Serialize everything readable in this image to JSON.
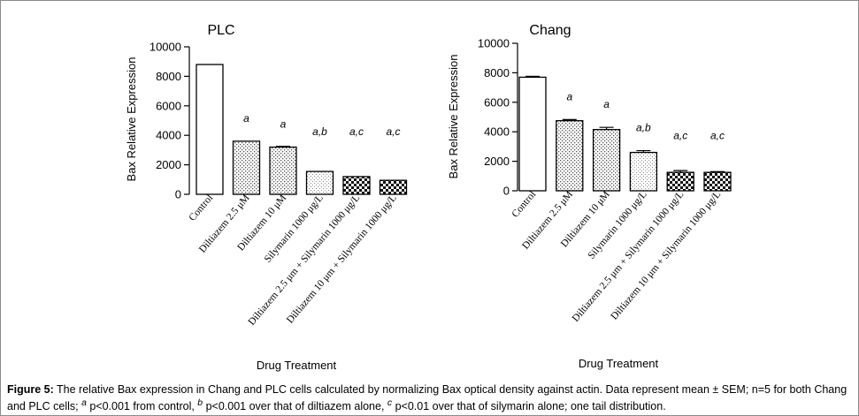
{
  "chart_data": [
    {
      "type": "bar",
      "title": "PLC",
      "xlabel": "Drug Treatment",
      "ylabel": "Bax Relative Expression",
      "ylim": [
        0,
        10000
      ],
      "yticks": [
        "0",
        "2000",
        "4000",
        "6000",
        "8000",
        "10000"
      ],
      "categories": [
        "Control",
        "Diltiazem 2.5 μM",
        "Diltiazem 10 μM",
        "Silymarin 1000 μg/L",
        "Diltiazem 2.5 μm + Silymarin 1000 μg/L",
        "Diltiazem 10 μm + Silymarin 1000 μg/L"
      ],
      "values": [
        8800,
        3600,
        3200,
        1550,
        1200,
        950
      ],
      "errors": [
        0,
        0,
        50,
        0,
        0,
        0
      ],
      "annotations": [
        "",
        "a",
        "a",
        "a,b",
        "a,c",
        "a,c"
      ],
      "patterns": [
        "white",
        "dots",
        "dots",
        "light-dots",
        "checker",
        "checker"
      ]
    },
    {
      "type": "bar",
      "title": "Chang",
      "xlabel": "Drug Treatment",
      "ylabel": "Bax Relative Expression",
      "ylim": [
        0,
        10000
      ],
      "yticks": [
        "0",
        "2000",
        "4000",
        "6000",
        "8000",
        "10000"
      ],
      "categories": [
        "Control",
        "Diltiazem 2.5 μM",
        "Diltiazem 10 μM",
        "Silymarin 1000 μg/L",
        "Diltiazem 2.5 μm + Silymarin 1000 μg/L",
        "Diltiazem 10 μm + Silymarin 1000 μg/L"
      ],
      "values": [
        7700,
        4750,
        4150,
        2600,
        1250,
        1250
      ],
      "errors": [
        60,
        80,
        150,
        120,
        120,
        50
      ],
      "annotations": [
        "",
        "a",
        "a",
        "a,b",
        "a,c",
        "a,c"
      ],
      "patterns": [
        "white",
        "dots",
        "dots",
        "light-dots",
        "checker",
        "checker"
      ]
    }
  ],
  "caption": {
    "label": "Figure 5:",
    "text": " The relative Bax expression in Chang and PLC cells calculated by normalizing Bax optical density against actin. Data represent mean ± SEM; n=5 for both Chang and PLC cells; ",
    "note_a_sup": "a",
    "note_a": " p<0.001 from control, ",
    "note_b_sup": "b",
    "note_b": " p<0.001 over that of diltiazem alone, ",
    "note_c_sup": "c",
    "note_c": " p<0.01 over that of silymarin alone; one tail distribution."
  }
}
